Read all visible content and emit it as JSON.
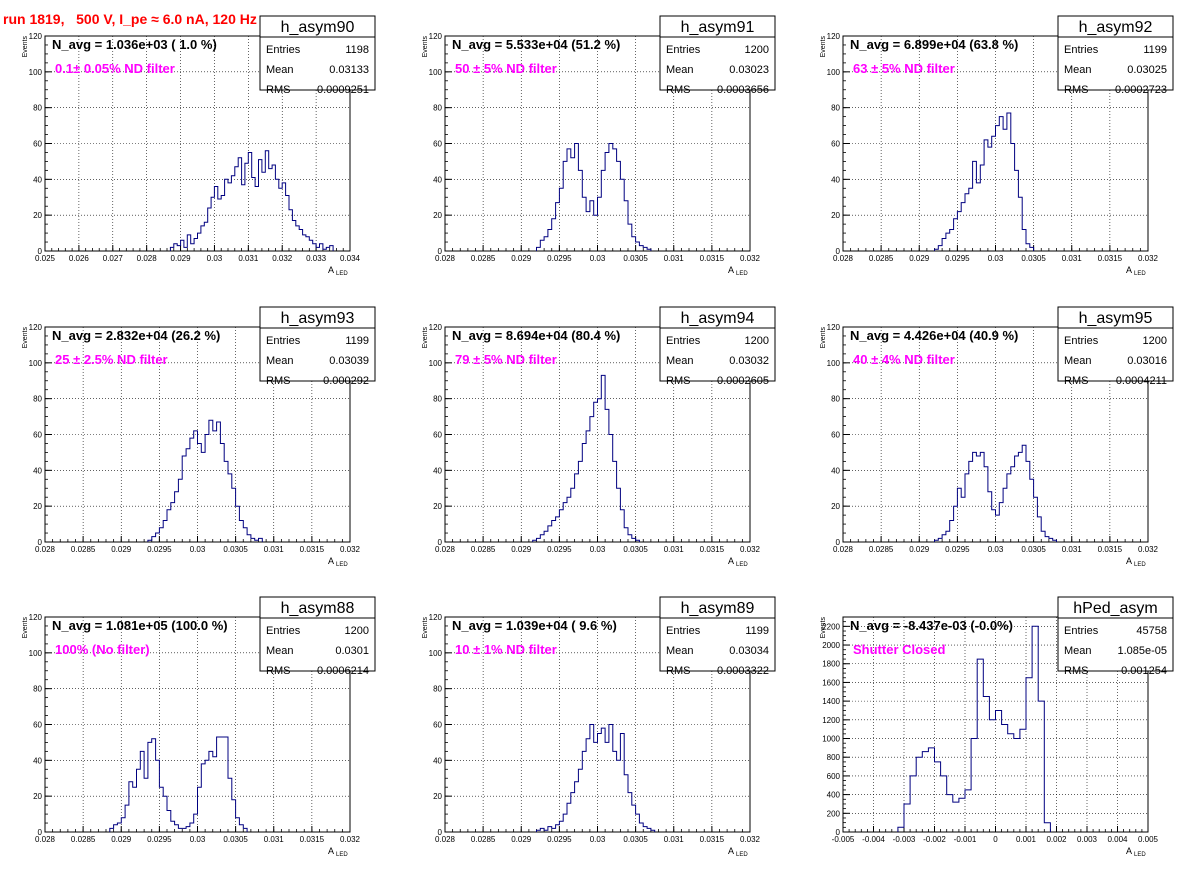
{
  "run_title": "run 1819,   500 V, I_pe ≈ 6.0 nA, 120 Hz",
  "stats_labels": [
    "Entries",
    "Mean",
    "RMS"
  ],
  "y_axis_label": "Events",
  "x_axis_label": "A",
  "x_axis_label_sub": "LED",
  "colors": {
    "hist_line": "#000080",
    "filter_text": "#ff00ff",
    "title_text": "#ff0000",
    "grid": "#000000"
  },
  "chart_data": [
    {
      "type": "bar",
      "hist_name": "h_asym90",
      "navg_text": "N_avg = 1.036e+03 ( 1.0 %)",
      "filter_text": "0.1± 0.05% ND filter",
      "entries": "1198",
      "mean": "0.03133",
      "rms": "0.0009251",
      "xlim": [
        0.025,
        0.034
      ],
      "ylim": [
        0,
        120
      ],
      "xticks": [
        0.025,
        0.026,
        0.027,
        0.028,
        0.029,
        0.03,
        0.031,
        0.032,
        0.033,
        0.034
      ],
      "xtick_labels": [
        "0.025",
        "0.026",
        "0.027",
        "0.028",
        "0.029",
        "0.03",
        "0.031",
        "0.032",
        "0.033",
        "0.034"
      ],
      "yticks": [
        0,
        20,
        40,
        60,
        80,
        100,
        120
      ],
      "bin_width": 0.0001,
      "bins_start": 0.0287,
      "values": [
        2,
        4,
        3,
        6,
        2,
        9,
        4,
        7,
        10,
        14,
        16,
        24,
        30,
        36,
        29,
        31,
        40,
        38,
        42,
        47,
        52,
        37,
        49,
        55,
        41,
        36,
        51,
        44,
        56,
        46,
        48,
        40,
        35,
        38,
        31,
        23,
        17,
        14,
        12,
        9,
        8,
        6,
        4,
        2,
        4,
        1,
        2,
        3
      ]
    },
    {
      "type": "bar",
      "hist_name": "h_asym91",
      "navg_text": "N_avg = 5.533e+04 (51.2 %)",
      "filter_text": "50 ± 5% ND filter",
      "entries": "1200",
      "mean": "0.03023",
      "rms": "0.0003656",
      "xlim": [
        0.028,
        0.032
      ],
      "ylim": [
        0,
        120
      ],
      "xticks": [
        0.028,
        0.0285,
        0.029,
        0.0295,
        0.03,
        0.0305,
        0.031,
        0.0315,
        0.032
      ],
      "xtick_labels": [
        "0.028",
        "0.0285",
        "0.029",
        "0.0295",
        "0.03",
        "0.0305",
        "0.031",
        "0.0315",
        "0.032"
      ],
      "yticks": [
        0,
        20,
        40,
        60,
        80,
        100,
        120
      ],
      "bin_width": 5e-05,
      "bins_start": 0.0292,
      "values": [
        2,
        6,
        8,
        12,
        18,
        27,
        35,
        50,
        57,
        52,
        60,
        45,
        30,
        22,
        28,
        20,
        30,
        45,
        55,
        60,
        57,
        50,
        40,
        28,
        15,
        8,
        5,
        3,
        2,
        1
      ]
    },
    {
      "type": "bar",
      "hist_name": "h_asym92",
      "navg_text": "N_avg = 6.899e+04 (63.8 %)",
      "filter_text": "63 ± 5% ND filter",
      "entries": "1199",
      "mean": "0.03025",
      "rms": "0.0002723",
      "xlim": [
        0.028,
        0.032
      ],
      "ylim": [
        0,
        120
      ],
      "xticks": [
        0.028,
        0.0285,
        0.029,
        0.0295,
        0.03,
        0.0305,
        0.031,
        0.0315,
        0.032
      ],
      "xtick_labels": [
        "0.028",
        "0.0285",
        "0.029",
        "0.0295",
        "0.03",
        "0.0305",
        "0.031",
        "0.0315",
        "0.032"
      ],
      "yticks": [
        0,
        20,
        40,
        60,
        80,
        100,
        120
      ],
      "bin_width": 5e-05,
      "bins_start": 0.0292,
      "values": [
        1,
        3,
        7,
        10,
        12,
        18,
        22,
        27,
        32,
        35,
        50,
        38,
        48,
        62,
        58,
        64,
        70,
        75,
        68,
        77,
        60,
        45,
        30,
        12,
        4,
        2
      ]
    },
    {
      "type": "bar",
      "hist_name": "h_asym93",
      "navg_text": "N_avg = 2.832e+04 (26.2 %)",
      "filter_text": "25 ± 2.5% ND filter",
      "entries": "1199",
      "mean": "0.03039",
      "rms": "0.000292",
      "xlim": [
        0.028,
        0.032
      ],
      "ylim": [
        0,
        120
      ],
      "xticks": [
        0.028,
        0.0285,
        0.029,
        0.0295,
        0.03,
        0.0305,
        0.031,
        0.0315,
        0.032
      ],
      "xtick_labels": [
        "0.028",
        "0.0285",
        "0.029",
        "0.0295",
        "0.03",
        "0.0305",
        "0.031",
        "0.0315",
        "0.032"
      ],
      "yticks": [
        0,
        20,
        40,
        60,
        80,
        100,
        120
      ],
      "bin_width": 5e-05,
      "bins_start": 0.02935,
      "values": [
        1,
        3,
        5,
        8,
        12,
        18,
        22,
        28,
        35,
        48,
        52,
        58,
        62,
        55,
        50,
        60,
        68,
        62,
        67,
        55,
        45,
        38,
        30,
        20,
        12,
        8,
        4,
        2,
        1,
        2
      ]
    },
    {
      "type": "bar",
      "hist_name": "h_asym94",
      "navg_text": "N_avg = 8.694e+04 (80.4 %)",
      "filter_text": "79 ± 5% ND filter",
      "entries": "1200",
      "mean": "0.03032",
      "rms": "0.0002605",
      "xlim": [
        0.028,
        0.032
      ],
      "ylim": [
        0,
        120
      ],
      "xticks": [
        0.028,
        0.0285,
        0.029,
        0.0295,
        0.03,
        0.0305,
        0.031,
        0.0315,
        0.032
      ],
      "xtick_labels": [
        "0.028",
        "0.0285",
        "0.029",
        "0.0295",
        "0.03",
        "0.0305",
        "0.031",
        "0.0315",
        "0.032"
      ],
      "yticks": [
        0,
        20,
        40,
        60,
        80,
        100,
        120
      ],
      "bin_width": 5e-05,
      "bins_start": 0.02915,
      "values": [
        1,
        2,
        4,
        6,
        9,
        12,
        14,
        18,
        22,
        25,
        30,
        38,
        45,
        55,
        62,
        70,
        78,
        80,
        93,
        74,
        60,
        45,
        30,
        18,
        8,
        4,
        2,
        1
      ]
    },
    {
      "type": "bar",
      "hist_name": "h_asym95",
      "navg_text": "N_avg = 4.426e+04 (40.9 %)",
      "filter_text": "40 ± 4% ND filter",
      "entries": "1200",
      "mean": "0.03016",
      "rms": "0.0004211",
      "xlim": [
        0.028,
        0.032
      ],
      "ylim": [
        0,
        120
      ],
      "xticks": [
        0.028,
        0.0285,
        0.029,
        0.0295,
        0.03,
        0.0305,
        0.031,
        0.0315,
        0.032
      ],
      "xtick_labels": [
        "0.028",
        "0.0285",
        "0.029",
        "0.0295",
        "0.03",
        "0.0305",
        "0.031",
        "0.0315",
        "0.032"
      ],
      "yticks": [
        0,
        20,
        40,
        60,
        80,
        100,
        120
      ],
      "bin_width": 5e-05,
      "bins_start": 0.0292,
      "values": [
        1,
        2,
        4,
        6,
        12,
        20,
        30,
        25,
        38,
        45,
        50,
        48,
        50,
        42,
        28,
        18,
        15,
        22,
        30,
        38,
        42,
        48,
        50,
        54,
        45,
        35,
        25,
        14,
        6,
        3,
        2,
        1
      ]
    },
    {
      "type": "bar",
      "hist_name": "h_asym88",
      "navg_text": "N_avg = 1.081e+05 (100.0 %)",
      "filter_text": "100% (No filter)",
      "entries": "1200",
      "mean": "0.0301",
      "rms": "0.0006214",
      "xlim": [
        0.028,
        0.032
      ],
      "ylim": [
        0,
        120
      ],
      "xticks": [
        0.028,
        0.0285,
        0.029,
        0.0295,
        0.03,
        0.0305,
        0.031,
        0.0315,
        0.032
      ],
      "xtick_labels": [
        "0.028",
        "0.0285",
        "0.029",
        "0.0295",
        "0.03",
        "0.0305",
        "0.031",
        "0.0315",
        "0.032"
      ],
      "yticks": [
        0,
        20,
        40,
        60,
        80,
        100,
        120
      ],
      "bin_width": 5e-05,
      "bins_start": 0.02885,
      "values": [
        2,
        4,
        5,
        8,
        15,
        28,
        25,
        35,
        45,
        30,
        50,
        52,
        40,
        25,
        20,
        12,
        6,
        4,
        2,
        2,
        3,
        5,
        10,
        25,
        38,
        40,
        45,
        42,
        53,
        53,
        53,
        30,
        18,
        8,
        4,
        2
      ]
    },
    {
      "type": "bar",
      "hist_name": "h_asym89",
      "navg_text": "N_avg = 1.039e+04 ( 9.6 %)",
      "filter_text": "10 ± 1% ND filter",
      "entries": "1199",
      "mean": "0.03034",
      "rms": "0.0003322",
      "xlim": [
        0.028,
        0.032
      ],
      "ylim": [
        0,
        120
      ],
      "xticks": [
        0.028,
        0.0285,
        0.029,
        0.0295,
        0.03,
        0.0305,
        0.031,
        0.0315,
        0.032
      ],
      "xtick_labels": [
        "0.028",
        "0.0285",
        "0.029",
        "0.0295",
        "0.03",
        "0.0305",
        "0.031",
        "0.0315",
        "0.032"
      ],
      "yticks": [
        0,
        20,
        40,
        60,
        80,
        100,
        120
      ],
      "bin_width": 5e-05,
      "bins_start": 0.0292,
      "values": [
        1,
        2,
        1,
        3,
        2,
        4,
        6,
        10,
        16,
        22,
        28,
        35,
        45,
        52,
        60,
        50,
        55,
        58,
        50,
        60,
        45,
        40,
        55,
        32,
        22,
        15,
        10,
        5,
        3,
        2,
        1
      ]
    },
    {
      "type": "bar",
      "hist_name": "hPed_asym",
      "navg_text": "N_avg = -8.437e-03 (-0.0%)",
      "filter_text": "Shutter Closed",
      "entries": "45758",
      "mean": "1.085e-05",
      "rms": "0.001254",
      "xlim": [
        -0.005,
        0.005
      ],
      "ylim": [
        0,
        2300
      ],
      "xticks": [
        -0.005,
        -0.004,
        -0.003,
        -0.002,
        -0.001,
        0,
        0.001,
        0.002,
        0.003,
        0.004,
        0.005
      ],
      "xtick_labels": [
        "-0.005",
        "-0.004",
        "-0.003",
        "-0.002",
        "-0.001",
        "0",
        "0.001",
        "0.002",
        "0.003",
        "0.004",
        "0.005"
      ],
      "yticks": [
        0,
        200,
        400,
        600,
        800,
        1000,
        1200,
        1400,
        1600,
        1800,
        2000,
        2200
      ],
      "bin_width": 0.0002,
      "bins_start": -0.0032,
      "values": [
        50,
        300,
        600,
        800,
        860,
        900,
        750,
        600,
        400,
        320,
        360,
        450,
        1000,
        1850,
        1450,
        1200,
        1300,
        1150,
        1050,
        1000,
        1100,
        1650,
        2200,
        1400,
        100
      ]
    }
  ]
}
